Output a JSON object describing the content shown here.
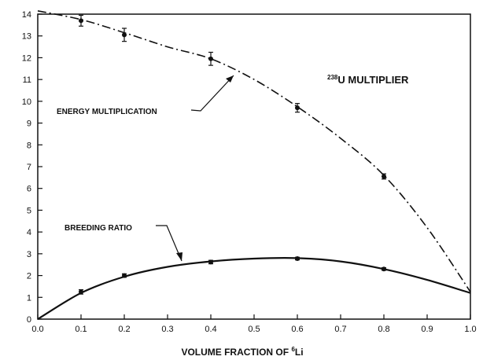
{
  "chart_data": {
    "type": "line",
    "xlabel_prefix": "VOLUME FRACTION OF ",
    "xlabel_sup": "6",
    "xlabel_suffix": "Li",
    "ylabel": "",
    "xlim": [
      0,
      1.0
    ],
    "ylim": [
      0,
      14
    ],
    "x_ticks": [
      0,
      0.1,
      0.2,
      0.3,
      0.4,
      0.5,
      0.6,
      0.7,
      0.8,
      0.9,
      1.0
    ],
    "x_tick_labels": [
      "0.0",
      "0.1",
      "0.2",
      "0.3",
      "0.4",
      "0.5",
      "0.6",
      "0.7",
      "0.8",
      "0.9",
      "1.0"
    ],
    "y_ticks": [
      0,
      1,
      2,
      3,
      4,
      5,
      6,
      7,
      8,
      9,
      10,
      11,
      12,
      13,
      14
    ],
    "y_tick_labels": [
      "0",
      "1",
      "2",
      "3",
      "4",
      "5",
      "6",
      "7",
      "8",
      "9",
      "10",
      "11",
      "12",
      "13",
      "14"
    ],
    "grid": false,
    "series": [
      {
        "name": "ENERGY MULTIPLICATION",
        "line_style": "dash-dot",
        "curve_x": [
          0.0,
          0.1,
          0.2,
          0.3,
          0.4,
          0.5,
          0.6,
          0.7,
          0.8,
          0.9,
          1.0
        ],
        "curve_y": [
          14.15,
          13.75,
          13.15,
          12.5,
          11.95,
          11.0,
          9.75,
          8.3,
          6.6,
          4.2,
          1.25
        ],
        "points": [
          {
            "x": 0.1,
            "y": 13.7,
            "err": 0.25
          },
          {
            "x": 0.2,
            "y": 13.05,
            "err": 0.3
          },
          {
            "x": 0.4,
            "y": 11.95,
            "err": 0.3
          },
          {
            "x": 0.6,
            "y": 9.7,
            "err": 0.2
          },
          {
            "x": 0.8,
            "y": 6.55,
            "err": 0.12
          }
        ]
      },
      {
        "name": "BREEDING RATIO",
        "line_style": "solid",
        "curve_x": [
          0.0,
          0.1,
          0.2,
          0.3,
          0.4,
          0.5,
          0.6,
          0.7,
          0.8,
          0.9,
          1.0
        ],
        "curve_y": [
          0.0,
          1.2,
          1.95,
          2.4,
          2.65,
          2.78,
          2.8,
          2.65,
          2.3,
          1.8,
          1.2
        ],
        "points": [
          {
            "x": 0.1,
            "y": 1.25,
            "err": 0.1
          },
          {
            "x": 0.2,
            "y": 2.0,
            "err": 0.08
          },
          {
            "x": 0.4,
            "y": 2.62,
            "err": 0.08
          },
          {
            "x": 0.6,
            "y": 2.78,
            "err": 0.06
          },
          {
            "x": 0.8,
            "y": 2.3,
            "err": 0.06
          }
        ]
      }
    ],
    "annotations": {
      "multiplier_sup": "238",
      "multiplier_text": "U MULTIPLIER",
      "energy_label": "ENERGY MULTIPLICATION",
      "breeding_label": "BREEDING RATIO"
    }
  }
}
